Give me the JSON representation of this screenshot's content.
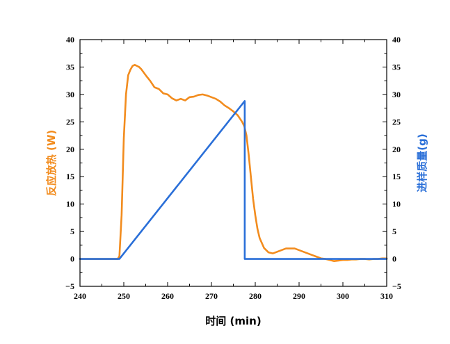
{
  "chart_data": {
    "type": "line",
    "xlabel": "时间 (min)",
    "ylabel_left": "反应放热 (W)",
    "ylabel_right": "进样质量(g)",
    "xlim": [
      240,
      310
    ],
    "ylim_left": [
      -5,
      40
    ],
    "ylim_right": [
      -5,
      40
    ],
    "x_ticks": [
      240,
      250,
      260,
      270,
      280,
      290,
      300,
      310
    ],
    "y_ticks_left": [
      -5,
      0,
      5,
      10,
      15,
      20,
      25,
      30,
      35,
      40
    ],
    "y_ticks_right": [
      -5,
      0,
      5,
      10,
      15,
      20,
      25,
      30,
      35,
      40
    ],
    "minus_sign": "−",
    "grid": false,
    "series": [
      {
        "name": "反应放热 (W)",
        "axis": "left",
        "color": "#F28C1E",
        "x": [
          240,
          248,
          248.6,
          249.0,
          249.5,
          250.0,
          250.5,
          251.0,
          251.5,
          252.0,
          252.5,
          253.0,
          253.5,
          254.0,
          255.0,
          256.0,
          257.0,
          258.0,
          259.0,
          260.0,
          261.0,
          262.0,
          263.0,
          264.0,
          265.0,
          266.0,
          267.0,
          268.0,
          269.0,
          270.0,
          271.0,
          272.0,
          273.0,
          274.0,
          275.0,
          276.0,
          277.0,
          277.5,
          278.0,
          278.5,
          279.0,
          279.5,
          280.0,
          280.5,
          281.0,
          282.0,
          283.0,
          284.0,
          285.0,
          286.0,
          287.0,
          288.0,
          289.0,
          290.0,
          291.0,
          292.0,
          293.0,
          294.0,
          295.0,
          296.0,
          297.0,
          298.0,
          299.0,
          300.0,
          301.0,
          302.0,
          303.0,
          304.0,
          305.0,
          306.0,
          307.0,
          308.0,
          309.0,
          310.0
        ],
        "values": [
          0,
          0,
          0,
          0.5,
          8,
          22,
          30,
          33.5,
          34.5,
          35.2,
          35.4,
          35.2,
          35.0,
          34.6,
          33.5,
          32.5,
          31.3,
          31.0,
          30.2,
          30.0,
          29.3,
          28.9,
          29.2,
          28.9,
          29.5,
          29.6,
          29.9,
          30.0,
          29.8,
          29.5,
          29.2,
          28.7,
          28.0,
          27.5,
          26.9,
          26.2,
          25.0,
          24.2,
          22.5,
          19.0,
          15.0,
          11.0,
          8.0,
          5.5,
          3.8,
          2.0,
          1.2,
          1.0,
          1.3,
          1.6,
          1.9,
          1.9,
          1.9,
          1.6,
          1.3,
          1.0,
          0.7,
          0.4,
          0.1,
          0.0,
          -0.2,
          -0.4,
          -0.3,
          -0.2,
          -0.2,
          -0.1,
          -0.1,
          0.0,
          0.0,
          -0.1,
          0.0,
          0.0,
          0.1,
          0.1
        ]
      },
      {
        "name": "进样质量(g)",
        "axis": "right",
        "color": "#2A6FD8",
        "x": [
          240,
          249.0,
          277.6,
          277.6,
          310
        ],
        "values": [
          0,
          0,
          28.8,
          0,
          0
        ]
      }
    ]
  }
}
